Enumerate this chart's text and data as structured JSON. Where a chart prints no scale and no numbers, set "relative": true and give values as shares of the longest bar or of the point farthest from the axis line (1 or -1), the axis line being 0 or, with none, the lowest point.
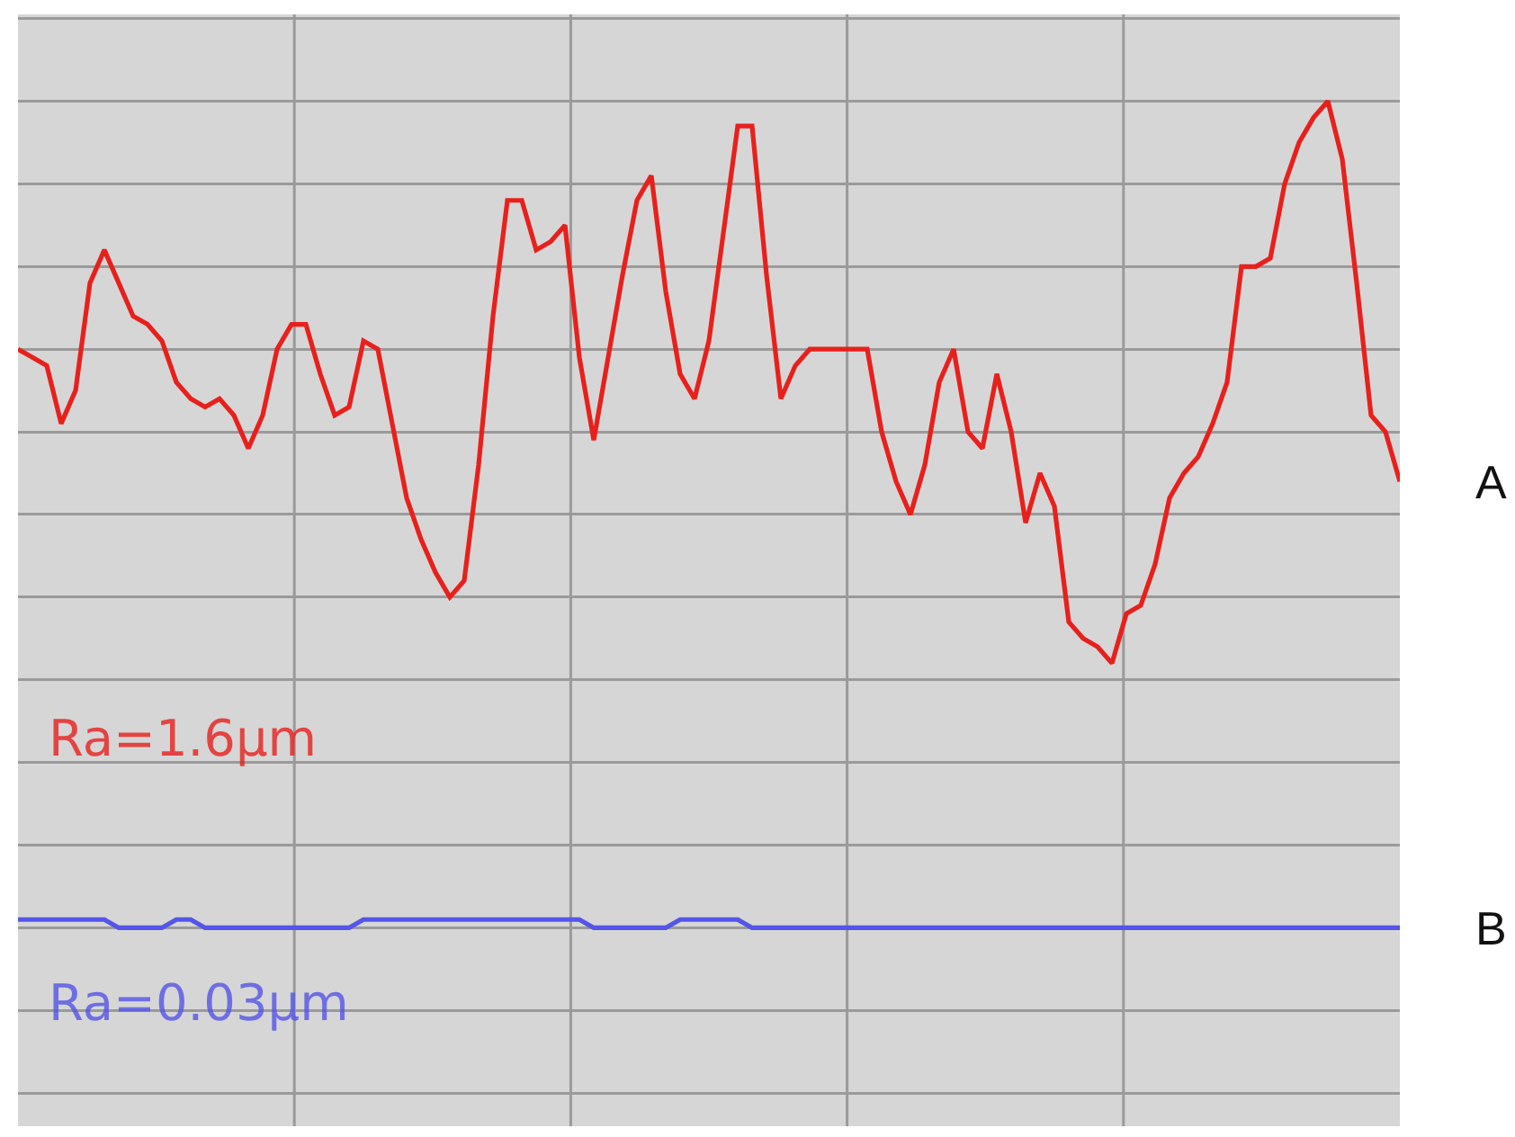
{
  "chart_data": {
    "type": "line",
    "relative": true,
    "grid": true,
    "legend": false,
    "marker": "none",
    "line_style": "solid",
    "annotations": [
      "Ra=1.6μm",
      "Ra=0.03μm"
    ],
    "categories": [
      null,
      null,
      null,
      null,
      null,
      null,
      null,
      null,
      null,
      null,
      null,
      null,
      null,
      null,
      null,
      null,
      null,
      null,
      null,
      null,
      null,
      null,
      null,
      null,
      null,
      null,
      null,
      null,
      null,
      null,
      null,
      null,
      null,
      null,
      null,
      null,
      null,
      null,
      null,
      null,
      null,
      null,
      null,
      null,
      null,
      null,
      null,
      null,
      null,
      null,
      null,
      null,
      null,
      null,
      null,
      null,
      null,
      null,
      null,
      null,
      null,
      null,
      null,
      null,
      null,
      null,
      null,
      null,
      null,
      null,
      null,
      null,
      null,
      null,
      null,
      null,
      null,
      null,
      null,
      null,
      null,
      null,
      null,
      null,
      null,
      null,
      null,
      null,
      null,
      null,
      null,
      null,
      null,
      null,
      null,
      null,
      null
    ],
    "series": [
      {
        "name": "A",
        "color": "#e8201c",
        "values": [
          0.7,
          0.69,
          0.68,
          0.61,
          0.65,
          0.78,
          0.82,
          0.78,
          0.74,
          0.73,
          0.71,
          0.66,
          0.64,
          0.63,
          0.64,
          0.62,
          0.58,
          0.62,
          0.7,
          0.73,
          0.73,
          0.67,
          0.62,
          0.63,
          0.71,
          0.7,
          0.61,
          0.52,
          0.47,
          0.43,
          0.4,
          0.42,
          0.56,
          0.74,
          0.88,
          0.88,
          0.82,
          0.83,
          0.85,
          0.69,
          0.59,
          0.69,
          0.79,
          0.88,
          0.91,
          0.77,
          0.67,
          0.64,
          0.71,
          0.84,
          0.97,
          0.97,
          0.79,
          0.64,
          0.68,
          0.7,
          0.7,
          0.7,
          0.7,
          0.7,
          0.6,
          0.54,
          0.5,
          0.56,
          0.66,
          0.7,
          0.6,
          0.58,
          0.67,
          0.6,
          0.49,
          0.55,
          0.51,
          0.37,
          0.35,
          0.34,
          0.32,
          0.38,
          0.39,
          0.44,
          0.52,
          0.55,
          0.57,
          0.61,
          0.66,
          0.8,
          0.8,
          0.81,
          0.9,
          0.95,
          0.98,
          1,
          0.93,
          0.78,
          0.62,
          0.6,
          0.54
        ]
      },
      {
        "name": "B",
        "color": "#5555e8",
        "values": [
          0.01,
          0.01,
          0.01,
          0.01,
          0.01,
          0.01,
          0.01,
          0,
          0,
          0,
          0,
          0.01,
          0.01,
          0,
          0,
          0,
          0,
          0,
          0,
          0,
          0,
          0,
          0,
          0,
          0.01,
          0.01,
          0.01,
          0.01,
          0.01,
          0.01,
          0.01,
          0.01,
          0.01,
          0.01,
          0.01,
          0.01,
          0.01,
          0.01,
          0.01,
          0.01,
          0,
          0,
          0,
          0,
          0,
          0,
          0.01,
          0.01,
          0.01,
          0.01,
          0.01,
          0,
          0,
          0,
          0,
          0,
          0,
          0,
          0,
          0,
          0,
          0,
          0,
          0,
          0,
          0,
          0,
          0,
          0,
          0,
          0,
          0,
          0,
          0,
          0,
          0,
          0,
          0,
          0,
          0,
          0,
          0,
          0,
          0,
          0,
          0,
          0,
          0,
          0,
          0,
          0,
          0,
          0,
          0,
          0,
          0,
          0
        ]
      }
    ]
  }
}
